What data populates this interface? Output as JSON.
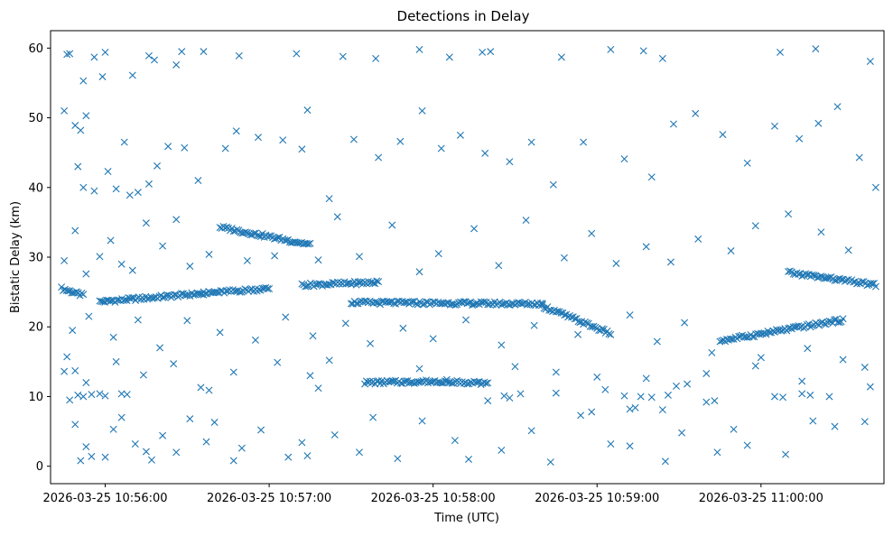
{
  "chart_data": {
    "type": "scatter",
    "title": "Detections in Delay",
    "xlabel": "Time (UTC)",
    "ylabel": "Bistatic Delay (km)",
    "marker": "x",
    "color": "#1f77b4",
    "xlim": [
      "2026-03-25 10:55:40",
      "2026-03-25 11:00:45"
    ],
    "ylim": [
      -2.5,
      62.5
    ],
    "grid": false,
    "x_ticks": [
      "2026-03-25 10:56:00",
      "2026-03-25 10:57:00",
      "2026-03-25 10:58:00",
      "2026-03-25 10:59:00",
      "2026-03-25 11:00:00"
    ],
    "y_ticks": [
      "0",
      "10",
      "20",
      "30",
      "40",
      "50",
      "60"
    ],
    "x_range_note_start": "2026-03-25 10:55:44",
    "x_range_note_end": "2026-03-25 11:00:42",
    "tracks": [
      {
        "from": [
          "2026-03-25 10:55:44",
          25.5
        ],
        "to": [
          "2026-03-25 10:55:52",
          24.5
        ]
      },
      {
        "from": [
          "2026-03-25 10:55:58",
          23.6
        ],
        "to": [
          "2026-03-25 10:56:36",
          24.8
        ]
      },
      {
        "from": [
          "2026-03-25 10:56:36",
          24.8
        ],
        "to": [
          "2026-03-25 10:57:00",
          25.5
        ]
      },
      {
        "from": [
          "2026-03-25 10:56:42",
          34.3
        ],
        "to": [
          "2026-03-25 10:57:15",
          31.8
        ]
      },
      {
        "from": [
          "2026-03-25 10:57:12",
          26.0
        ],
        "to": [
          "2026-03-25 10:57:40",
          26.4
        ]
      },
      {
        "from": [
          "2026-03-25 10:57:30",
          23.5
        ],
        "to": [
          "2026-03-25 10:58:40",
          23.3
        ]
      },
      {
        "from": [
          "2026-03-25 10:58:40",
          23.0
        ],
        "to": [
          "2026-03-25 10:59:05",
          19.0
        ]
      },
      {
        "from": [
          "2026-03-25 10:57:35",
          12.0
        ],
        "to": [
          "2026-03-25 10:58:05",
          12.2
        ]
      },
      {
        "from": [
          "2026-03-25 10:58:05",
          12.2
        ],
        "to": [
          "2026-03-25 10:58:20",
          11.8
        ]
      },
      {
        "from": [
          "2026-03-25 10:59:45",
          18.0
        ],
        "to": [
          "2026-03-25 11:00:30",
          21.0
        ]
      },
      {
        "from": [
          "2026-03-25 11:00:10",
          27.8
        ],
        "to": [
          "2026-03-25 11:00:42",
          26.0
        ]
      }
    ],
    "points": [
      [
        "2026-03-25 10:55:45",
        51.0
      ],
      [
        "2026-03-25 10:55:46",
        59.1
      ],
      [
        "2026-03-25 10:55:47",
        59.2
      ],
      [
        "2026-03-25 10:55:49",
        48.9
      ],
      [
        "2026-03-25 10:55:51",
        48.2
      ],
      [
        "2026-03-25 10:55:53",
        50.3
      ],
      [
        "2026-03-25 10:55:52",
        55.3
      ],
      [
        "2026-03-25 10:55:56",
        58.7
      ],
      [
        "2026-03-25 10:55:59",
        55.9
      ],
      [
        "2026-03-25 10:56:00",
        59.4
      ],
      [
        "2026-03-25 10:56:07",
        46.5
      ],
      [
        "2026-03-25 10:56:10",
        56.1
      ],
      [
        "2026-03-25 10:56:16",
        58.9
      ],
      [
        "2026-03-25 10:56:18",
        58.3
      ],
      [
        "2026-03-25 10:56:26",
        57.6
      ],
      [
        "2026-03-25 10:56:28",
        59.5
      ],
      [
        "2026-03-25 10:56:36",
        59.5
      ],
      [
        "2026-03-25 10:56:49",
        58.9
      ],
      [
        "2026-03-25 10:57:10",
        59.2
      ],
      [
        "2026-03-25 10:57:27",
        58.8
      ],
      [
        "2026-03-25 10:57:39",
        58.5
      ],
      [
        "2026-03-25 10:57:55",
        59.8
      ],
      [
        "2026-03-25 10:58:06",
        58.7
      ],
      [
        "2026-03-25 10:58:18",
        59.4
      ],
      [
        "2026-03-25 10:58:21",
        59.5
      ],
      [
        "2026-03-25 10:58:47",
        58.7
      ],
      [
        "2026-03-25 10:59:05",
        59.8
      ],
      [
        "2026-03-25 10:59:17",
        59.6
      ],
      [
        "2026-03-25 10:59:24",
        58.5
      ],
      [
        "2026-03-25 11:00:07",
        59.4
      ],
      [
        "2026-03-25 11:00:20",
        59.9
      ],
      [
        "2026-03-25 11:00:40",
        58.1
      ],
      [
        "2026-03-25 10:55:50",
        43.0
      ],
      [
        "2026-03-25 10:55:52",
        40.0
      ],
      [
        "2026-03-25 10:55:56",
        39.5
      ],
      [
        "2026-03-25 10:56:01",
        42.3
      ],
      [
        "2026-03-25 10:56:04",
        39.8
      ],
      [
        "2026-03-25 10:56:09",
        38.9
      ],
      [
        "2026-03-25 10:56:12",
        39.3
      ],
      [
        "2026-03-25 10:56:16",
        40.5
      ],
      [
        "2026-03-25 10:56:19",
        43.1
      ],
      [
        "2026-03-25 10:56:23",
        45.9
      ],
      [
        "2026-03-25 10:56:29",
        45.7
      ],
      [
        "2026-03-25 10:56:34",
        41.0
      ],
      [
        "2026-03-25 10:56:44",
        45.6
      ],
      [
        "2026-03-25 10:56:48",
        48.1
      ],
      [
        "2026-03-25 10:56:56",
        47.2
      ],
      [
        "2026-03-25 10:57:05",
        46.8
      ],
      [
        "2026-03-25 10:57:12",
        45.5
      ],
      [
        "2026-03-25 10:57:14",
        51.1
      ],
      [
        "2026-03-25 10:57:22",
        38.4
      ],
      [
        "2026-03-25 10:57:31",
        46.9
      ],
      [
        "2026-03-25 10:57:40",
        44.3
      ],
      [
        "2026-03-25 10:57:48",
        46.6
      ],
      [
        "2026-03-25 10:57:56",
        51.0
      ],
      [
        "2026-03-25 10:58:03",
        45.6
      ],
      [
        "2026-03-25 10:58:10",
        47.5
      ],
      [
        "2026-03-25 10:58:19",
        44.9
      ],
      [
        "2026-03-25 10:58:28",
        43.7
      ],
      [
        "2026-03-25 10:58:36",
        46.5
      ],
      [
        "2026-03-25 10:58:44",
        40.4
      ],
      [
        "2026-03-25 10:58:55",
        46.5
      ],
      [
        "2026-03-25 10:59:10",
        44.1
      ],
      [
        "2026-03-25 10:59:20",
        41.5
      ],
      [
        "2026-03-25 10:59:28",
        49.1
      ],
      [
        "2026-03-25 10:59:36",
        50.6
      ],
      [
        "2026-03-25 10:59:46",
        47.6
      ],
      [
        "2026-03-25 10:59:55",
        43.5
      ],
      [
        "2026-03-25 11:00:05",
        48.8
      ],
      [
        "2026-03-25 11:00:14",
        47.0
      ],
      [
        "2026-03-25 11:00:21",
        49.2
      ],
      [
        "2026-03-25 11:00:28",
        51.6
      ],
      [
        "2026-03-25 11:00:36",
        44.3
      ],
      [
        "2026-03-25 11:00:42",
        40.0
      ],
      [
        "2026-03-25 10:55:45",
        29.5
      ],
      [
        "2026-03-25 10:55:49",
        33.8
      ],
      [
        "2026-03-25 10:55:53",
        27.6
      ],
      [
        "2026-03-25 10:55:58",
        30.1
      ],
      [
        "2026-03-25 10:56:02",
        32.4
      ],
      [
        "2026-03-25 10:56:06",
        29.0
      ],
      [
        "2026-03-25 10:56:10",
        28.1
      ],
      [
        "2026-03-25 10:56:15",
        34.9
      ],
      [
        "2026-03-25 10:56:21",
        31.6
      ],
      [
        "2026-03-25 10:56:26",
        35.4
      ],
      [
        "2026-03-25 10:56:31",
        28.7
      ],
      [
        "2026-03-25 10:56:38",
        30.4
      ],
      [
        "2026-03-25 10:56:52",
        29.5
      ],
      [
        "2026-03-25 10:57:02",
        30.2
      ],
      [
        "2026-03-25 10:57:18",
        29.6
      ],
      [
        "2026-03-25 10:57:25",
        35.8
      ],
      [
        "2026-03-25 10:57:33",
        30.1
      ],
      [
        "2026-03-25 10:57:45",
        34.6
      ],
      [
        "2026-03-25 10:57:55",
        27.9
      ],
      [
        "2026-03-25 10:58:02",
        30.5
      ],
      [
        "2026-03-25 10:58:15",
        34.1
      ],
      [
        "2026-03-25 10:58:24",
        28.8
      ],
      [
        "2026-03-25 10:58:34",
        35.3
      ],
      [
        "2026-03-25 10:58:48",
        29.9
      ],
      [
        "2026-03-25 10:58:58",
        33.4
      ],
      [
        "2026-03-25 10:59:07",
        29.1
      ],
      [
        "2026-03-25 10:59:18",
        31.5
      ],
      [
        "2026-03-25 10:59:27",
        29.3
      ],
      [
        "2026-03-25 10:59:37",
        32.6
      ],
      [
        "2026-03-25 10:59:49",
        30.9
      ],
      [
        "2026-03-25 10:59:58",
        34.5
      ],
      [
        "2026-03-25 11:00:10",
        36.2
      ],
      [
        "2026-03-25 11:00:22",
        33.6
      ],
      [
        "2026-03-25 11:00:32",
        31.0
      ],
      [
        "2026-03-25 10:55:48",
        19.5
      ],
      [
        "2026-03-25 10:55:54",
        21.5
      ],
      [
        "2026-03-25 10:56:03",
        18.5
      ],
      [
        "2026-03-25 10:56:12",
        21.0
      ],
      [
        "2026-03-25 10:56:20",
        17.0
      ],
      [
        "2026-03-25 10:56:30",
        20.9
      ],
      [
        "2026-03-25 10:56:42",
        19.2
      ],
      [
        "2026-03-25 10:56:55",
        18.1
      ],
      [
        "2026-03-25 10:57:06",
        21.4
      ],
      [
        "2026-03-25 10:57:16",
        18.7
      ],
      [
        "2026-03-25 10:57:28",
        20.5
      ],
      [
        "2026-03-25 10:57:37",
        17.6
      ],
      [
        "2026-03-25 10:57:49",
        19.8
      ],
      [
        "2026-03-25 10:58:00",
        18.3
      ],
      [
        "2026-03-25 10:58:12",
        21.0
      ],
      [
        "2026-03-25 10:58:25",
        17.4
      ],
      [
        "2026-03-25 10:58:37",
        20.2
      ],
      [
        "2026-03-25 10:58:53",
        18.9
      ],
      [
        "2026-03-25 10:59:12",
        21.7
      ],
      [
        "2026-03-25 10:59:22",
        17.9
      ],
      [
        "2026-03-25 10:59:32",
        20.6
      ],
      [
        "2026-03-25 10:59:42",
        16.3
      ],
      [
        "2026-03-25 11:00:00",
        15.6
      ],
      [
        "2026-03-25 11:00:17",
        16.9
      ],
      [
        "2026-03-25 10:55:46",
        15.7
      ],
      [
        "2026-03-25 10:55:45",
        13.6
      ],
      [
        "2026-03-25 10:55:49",
        13.7
      ],
      [
        "2026-03-25 10:55:47",
        9.5
      ],
      [
        "2026-03-25 10:55:53",
        12.0
      ],
      [
        "2026-03-25 10:56:04",
        15.0
      ],
      [
        "2026-03-25 10:56:14",
        13.1
      ],
      [
        "2026-03-25 10:56:25",
        14.7
      ],
      [
        "2026-03-25 10:56:35",
        11.3
      ],
      [
        "2026-03-25 10:56:47",
        13.5
      ],
      [
        "2026-03-25 10:57:03",
        14.9
      ],
      [
        "2026-03-25 10:57:15",
        13.0
      ],
      [
        "2026-03-25 10:57:22",
        15.2
      ],
      [
        "2026-03-25 10:57:55",
        14.0
      ],
      [
        "2026-03-25 10:58:30",
        14.3
      ],
      [
        "2026-03-25 10:58:45",
        13.5
      ],
      [
        "2026-03-25 10:59:00",
        12.8
      ],
      [
        "2026-03-25 10:59:18",
        12.6
      ],
      [
        "2026-03-25 10:59:40",
        13.3
      ],
      [
        "2026-03-25 10:59:58",
        14.4
      ],
      [
        "2026-03-25 11:00:15",
        12.2
      ],
      [
        "2026-03-25 11:00:30",
        15.3
      ],
      [
        "2026-03-25 11:00:38",
        14.2
      ],
      [
        "2026-03-25 10:55:50",
        10.2
      ],
      [
        "2026-03-25 10:55:52",
        10.0
      ],
      [
        "2026-03-25 10:55:55",
        10.3
      ],
      [
        "2026-03-25 10:55:58",
        10.4
      ],
      [
        "2026-03-25 10:56:00",
        10.1
      ],
      [
        "2026-03-25 10:56:06",
        10.4
      ],
      [
        "2026-03-25 10:56:08",
        10.3
      ],
      [
        "2026-03-25 10:56:38",
        10.9
      ],
      [
        "2026-03-25 10:57:18",
        11.2
      ],
      [
        "2026-03-25 10:58:20",
        9.4
      ],
      [
        "2026-03-25 10:58:26",
        10.1
      ],
      [
        "2026-03-25 10:58:28",
        9.8
      ],
      [
        "2026-03-25 10:58:32",
        10.4
      ],
      [
        "2026-03-25 10:58:45",
        10.5
      ],
      [
        "2026-03-25 10:59:03",
        11.0
      ],
      [
        "2026-03-25 10:59:10",
        10.1
      ],
      [
        "2026-03-25 10:59:12",
        8.2
      ],
      [
        "2026-03-25 10:59:14",
        8.4
      ],
      [
        "2026-03-25 10:59:16",
        10.0
      ],
      [
        "2026-03-25 10:59:20",
        9.9
      ],
      [
        "2026-03-25 10:59:24",
        8.1
      ],
      [
        "2026-03-25 10:59:26",
        10.2
      ],
      [
        "2026-03-25 10:59:29",
        11.5
      ],
      [
        "2026-03-25 10:59:33",
        11.8
      ],
      [
        "2026-03-25 10:59:40",
        9.2
      ],
      [
        "2026-03-25 10:59:43",
        9.4
      ],
      [
        "2026-03-25 11:00:05",
        10.0
      ],
      [
        "2026-03-25 11:00:08",
        9.9
      ],
      [
        "2026-03-25 11:00:15",
        10.4
      ],
      [
        "2026-03-25 11:00:18",
        10.2
      ],
      [
        "2026-03-25 11:00:25",
        10.0
      ],
      [
        "2026-03-25 11:00:40",
        11.4
      ],
      [
        "2026-03-25 10:55:49",
        6.0
      ],
      [
        "2026-03-25 10:55:51",
        0.8
      ],
      [
        "2026-03-25 10:55:53",
        2.8
      ],
      [
        "2026-03-25 10:55:55",
        1.4
      ],
      [
        "2026-03-25 10:56:00",
        1.3
      ],
      [
        "2026-03-25 10:56:03",
        5.3
      ],
      [
        "2026-03-25 10:56:06",
        7.0
      ],
      [
        "2026-03-25 10:56:11",
        3.2
      ],
      [
        "2026-03-25 10:56:15",
        2.1
      ],
      [
        "2026-03-25 10:56:17",
        0.9
      ],
      [
        "2026-03-25 10:56:21",
        4.4
      ],
      [
        "2026-03-25 10:56:26",
        2.0
      ],
      [
        "2026-03-25 10:56:31",
        6.8
      ],
      [
        "2026-03-25 10:56:37",
        3.5
      ],
      [
        "2026-03-25 10:56:47",
        0.8
      ],
      [
        "2026-03-25 10:56:50",
        2.6
      ],
      [
        "2026-03-25 10:56:57",
        5.2
      ],
      [
        "2026-03-25 10:57:07",
        1.3
      ],
      [
        "2026-03-25 10:57:12",
        3.4
      ],
      [
        "2026-03-25 10:57:14",
        1.5
      ],
      [
        "2026-03-25 10:57:24",
        4.5
      ],
      [
        "2026-03-25 10:57:33",
        2.0
      ],
      [
        "2026-03-25 10:57:47",
        1.1
      ],
      [
        "2026-03-25 10:57:56",
        6.5
      ],
      [
        "2026-03-25 10:58:08",
        3.7
      ],
      [
        "2026-03-25 10:58:13",
        1.0
      ],
      [
        "2026-03-25 10:58:25",
        2.3
      ],
      [
        "2026-03-25 10:58:36",
        5.1
      ],
      [
        "2026-03-25 10:58:43",
        0.6
      ],
      [
        "2026-03-25 10:58:54",
        7.3
      ],
      [
        "2026-03-25 10:59:05",
        3.2
      ],
      [
        "2026-03-25 10:59:12",
        2.9
      ],
      [
        "2026-03-25 10:59:25",
        0.7
      ],
      [
        "2026-03-25 10:59:31",
        4.8
      ],
      [
        "2026-03-25 10:59:44",
        2.0
      ],
      [
        "2026-03-25 10:59:55",
        3.0
      ],
      [
        "2026-03-25 11:00:09",
        1.7
      ],
      [
        "2026-03-25 11:00:19",
        6.5
      ],
      [
        "2026-03-25 11:00:38",
        6.4
      ],
      [
        "2026-03-25 10:56:40",
        6.3
      ],
      [
        "2026-03-25 10:57:38",
        7.0
      ],
      [
        "2026-03-25 10:58:58",
        7.8
      ],
      [
        "2026-03-25 10:59:50",
        5.3
      ],
      [
        "2026-03-25 11:00:27",
        5.7
      ]
    ]
  }
}
